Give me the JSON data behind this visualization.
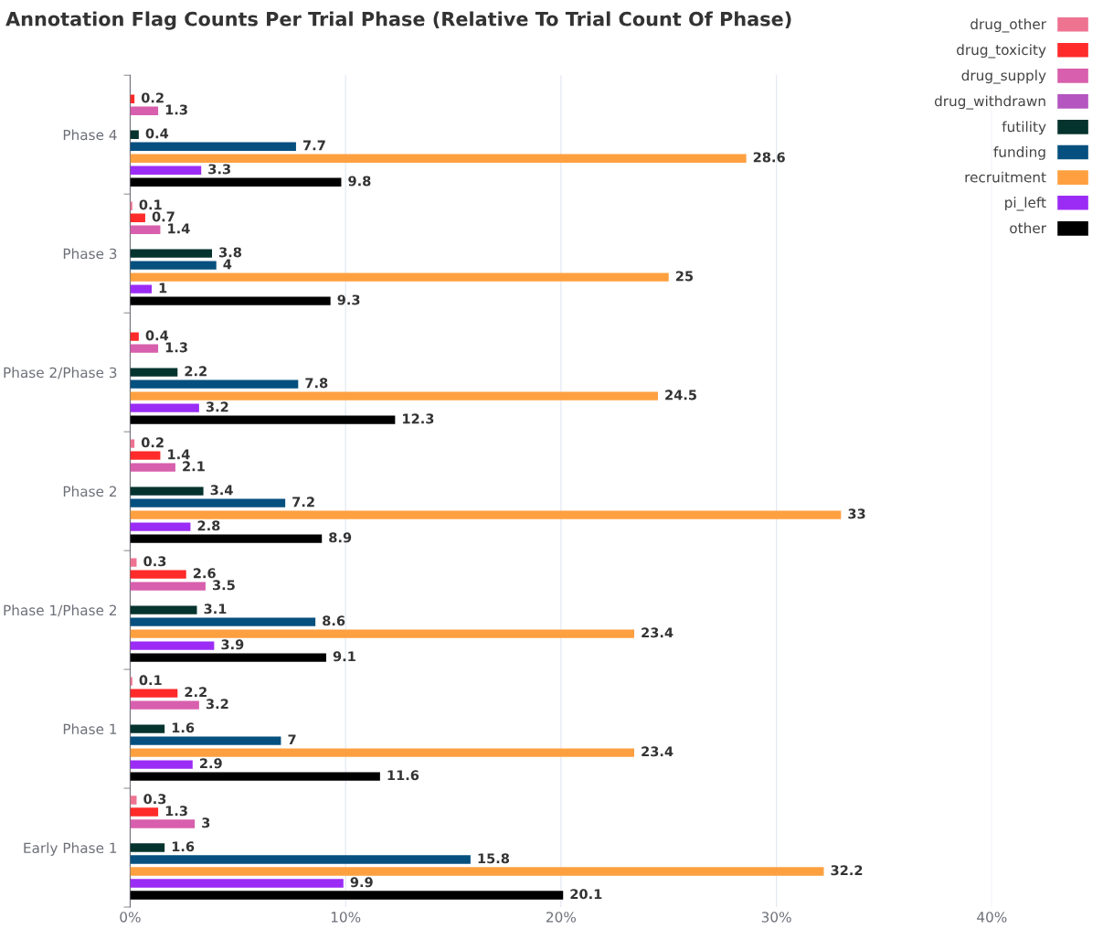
{
  "chart_data": {
    "type": "bar",
    "orientation": "horizontal",
    "title": "Annotation Flag Counts Per Trial Phase (Relative To Trial Count Of Phase)",
    "categories": [
      "Phase 4",
      "Phase 3",
      "Phase 2/Phase 3",
      "Phase 2",
      "Phase 1/Phase 2",
      "Phase 1",
      "Early Phase 1"
    ],
    "series": [
      {
        "name": "drug_other",
        "color": "#ee7391",
        "values": [
          null,
          0.1,
          null,
          0.2,
          0.3,
          0.1,
          0.3
        ]
      },
      {
        "name": "drug_toxicity",
        "color": "#ff2a2a",
        "values": [
          0.2,
          0.7,
          0.4,
          1.4,
          2.6,
          2.2,
          1.3
        ]
      },
      {
        "name": "drug_supply",
        "color": "#d85fad",
        "values": [
          1.3,
          1.4,
          1.3,
          2.1,
          3.5,
          3.2,
          3
        ]
      },
      {
        "name": "drug_withdrawn",
        "color": "#b455c0",
        "values": [
          null,
          null,
          null,
          null,
          null,
          null,
          null
        ]
      },
      {
        "name": "futility",
        "color": "#05332e",
        "values": [
          0.4,
          3.8,
          2.2,
          3.4,
          3.1,
          1.6,
          1.6
        ]
      },
      {
        "name": "funding",
        "color": "#06507f",
        "values": [
          7.7,
          4,
          7.8,
          7.2,
          8.6,
          7,
          15.8
        ]
      },
      {
        "name": "recruitment",
        "color": "#ffa040",
        "values": [
          28.6,
          25,
          24.5,
          33,
          23.4,
          23.4,
          32.2
        ]
      },
      {
        "name": "pi_left",
        "color": "#9b2cf5",
        "values": [
          3.3,
          1,
          3.2,
          2.8,
          3.9,
          2.9,
          9.9
        ]
      },
      {
        "name": "other",
        "color": "#000000",
        "values": [
          9.8,
          9.3,
          12.3,
          8.9,
          9.1,
          11.6,
          20.1
        ]
      }
    ],
    "xlim": [
      0,
      40
    ],
    "xticks": [
      {
        "value": 0,
        "label": "0%"
      },
      {
        "value": 10,
        "label": "10%"
      },
      {
        "value": 20,
        "label": "20%"
      },
      {
        "value": 30,
        "label": "30%"
      },
      {
        "value": 40,
        "label": "40%"
      }
    ],
    "grid": "x",
    "legend": "top right",
    "data_labels": true
  }
}
